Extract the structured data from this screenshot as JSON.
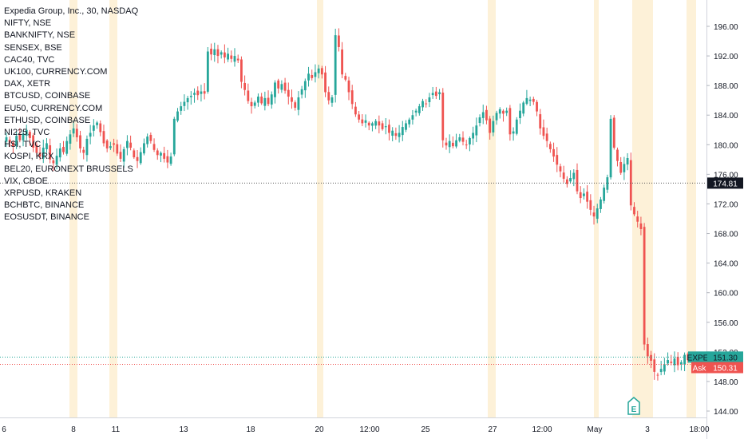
{
  "chart_data": {
    "type": "candlestick",
    "title": "Expedia Group, Inc., 30, NASDAQ",
    "symbol": "EXPE",
    "compare_symbols": [
      "NIFTY, NSE",
      "BANKNIFTY, NSE",
      "SENSEX, BSE",
      "CAC40, TVC",
      "UK100, CURRENCY.COM",
      "DAX, XETR",
      "BTCUSD, COINBASE",
      "EU50, CURRENCY.COM",
      "ETHUSD, COINBASE",
      "NI225, TVC",
      "HSI, TVC",
      "KOSPI, KRX",
      "BEL20, EURONEXT BRUSSELS",
      "VIX, CBOE",
      "XRPUSD, KRAKEN",
      "BCHBTC, BINANCE",
      "EOSUSDT, BINANCE"
    ],
    "ylim": [
      143,
      198
    ],
    "y_ticks": [
      "144.00",
      "148.00",
      "152.00",
      "156.00",
      "160.00",
      "164.00",
      "168.00",
      "172.00",
      "176.00",
      "180.00",
      "184.00",
      "188.00",
      "192.00",
      "196.00"
    ],
    "x_ticks": [
      "6",
      "8",
      "11",
      "13",
      "18",
      "20",
      "12:00",
      "25",
      "27",
      "12:00",
      "May",
      "3",
      "18:00"
    ],
    "price_labels": {
      "last": {
        "label": "EXPE",
        "value": "151.30",
        "color": "#26a69a"
      },
      "ask": {
        "label": "Ask",
        "value": "150.31",
        "color": "#ef5350"
      },
      "marker": {
        "value": "174.81"
      }
    },
    "earnings_marker": "E",
    "closes": [
      181.0,
      180.3,
      179.8,
      181.2,
      180.6,
      181.5,
      182.0,
      180.9,
      179.6,
      178.9,
      178.4,
      179.6,
      180.2,
      178.0,
      177.5,
      178.5,
      179.5,
      179.0,
      180.5,
      181.4,
      182.2,
      181.0,
      179.5,
      178.9,
      180.8,
      181.6,
      182.6,
      183.0,
      181.7,
      180.2,
      179.5,
      179.8,
      180.0,
      178.8,
      178.1,
      179.4,
      180.5,
      179.6,
      178.3,
      177.8,
      179.0,
      180.2,
      181.1,
      180.5,
      179.3,
      178.6,
      178.9,
      178.1,
      177.6,
      178.4,
      183.5,
      184.5,
      185.2,
      185.8,
      186.3,
      186.6,
      187.0,
      186.7,
      187.2,
      186.9,
      192.6,
      192.2,
      192.9,
      192.0,
      192.5,
      191.8,
      192.3,
      191.6,
      192.0,
      191.4,
      188.5,
      187.4,
      185.9,
      185.2,
      185.7,
      186.5,
      185.6,
      186.3,
      185.5,
      186.8,
      188.4,
      187.6,
      188.2,
      187.3,
      186.5,
      185.8,
      185.0,
      186.4,
      187.5,
      188.6,
      189.6,
      189.0,
      189.8,
      190.3,
      189.5,
      187.1,
      186.0,
      186.4,
      194.8,
      193.2,
      189.5,
      188.8,
      187.1,
      185.5,
      184.1,
      183.4,
      182.9,
      183.3,
      182.6,
      182.9,
      183.2,
      182.6,
      182.1,
      182.5,
      181.6,
      181.9,
      181.2,
      181.6,
      182.4,
      182.9,
      183.4,
      184.0,
      184.6,
      185.2,
      185.9,
      185.5,
      186.4,
      187.0,
      186.6,
      187.1,
      180.6,
      179.9,
      180.5,
      179.8,
      180.6,
      181.0,
      180.4,
      180.0,
      180.9,
      181.6,
      182.6,
      183.7,
      184.4,
      183.3,
      181.6,
      183.2,
      184.3,
      184.8,
      184.2,
      184.6,
      181.4,
      181.8,
      183.4,
      184.6,
      185.7,
      186.3,
      186.1,
      185.8,
      184.5,
      182.2,
      181.2,
      180.5,
      179.4,
      178.4,
      177.3,
      176.4,
      175.4,
      174.7,
      175.5,
      176.2,
      173.7,
      172.8,
      173.4,
      172.3,
      171.2,
      170.3,
      171.4,
      172.6,
      174.2,
      175.6,
      183.5,
      179.6,
      177.8,
      176.2,
      177.4,
      178.2,
      171.8,
      170.6,
      169.6,
      168.6,
      153.0,
      151.4,
      150.8,
      149.3,
      148.9,
      149.7,
      150.3,
      150.9,
      150.5,
      151.1,
      150.2,
      150.6,
      151.6,
      150.9,
      151.3
    ]
  }
}
